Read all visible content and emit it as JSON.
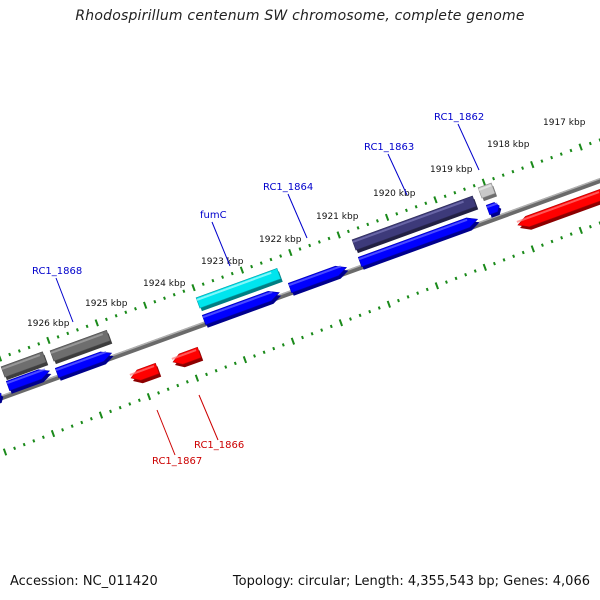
{
  "title": "Rhodospirillum centenum SW chromosome, complete genome",
  "accession": "Accession: NC_011420",
  "summary": "Topology: circular; Length: 4,355,543 bp; Genes: 4,066",
  "colors": {
    "forward_gene": "#0000ff",
    "reverse_gene": "#ff0000",
    "highlight_gene": "#00e5ee",
    "feature_grey": "#6e6e6e",
    "feature_dark": "#3d3a7a",
    "feature_light": "#c8c8c8",
    "backbone": "#808080",
    "tick": "#1a8a1a",
    "label_forward": "#0000cc",
    "label_reverse": "#cc0000"
  },
  "scale_labels": [
    "1917 kbp",
    "1918 kbp",
    "1919 kbp",
    "1920 kbp",
    "1921 kbp",
    "1922 kbp",
    "1923 kbp",
    "1924 kbp",
    "1925 kbp",
    "1926 kbp"
  ],
  "gene_labels": [
    {
      "text": "RC1_1862",
      "strand": "forward"
    },
    {
      "text": "RC1_1863",
      "strand": "forward"
    },
    {
      "text": "RC1_1864",
      "strand": "forward"
    },
    {
      "text": "fumC",
      "strand": "forward"
    },
    {
      "text": "RC1_1868",
      "strand": "forward"
    },
    {
      "text": "RC1_1866",
      "strand": "reverse"
    },
    {
      "text": "RC1_1867",
      "strand": "reverse"
    }
  ]
}
